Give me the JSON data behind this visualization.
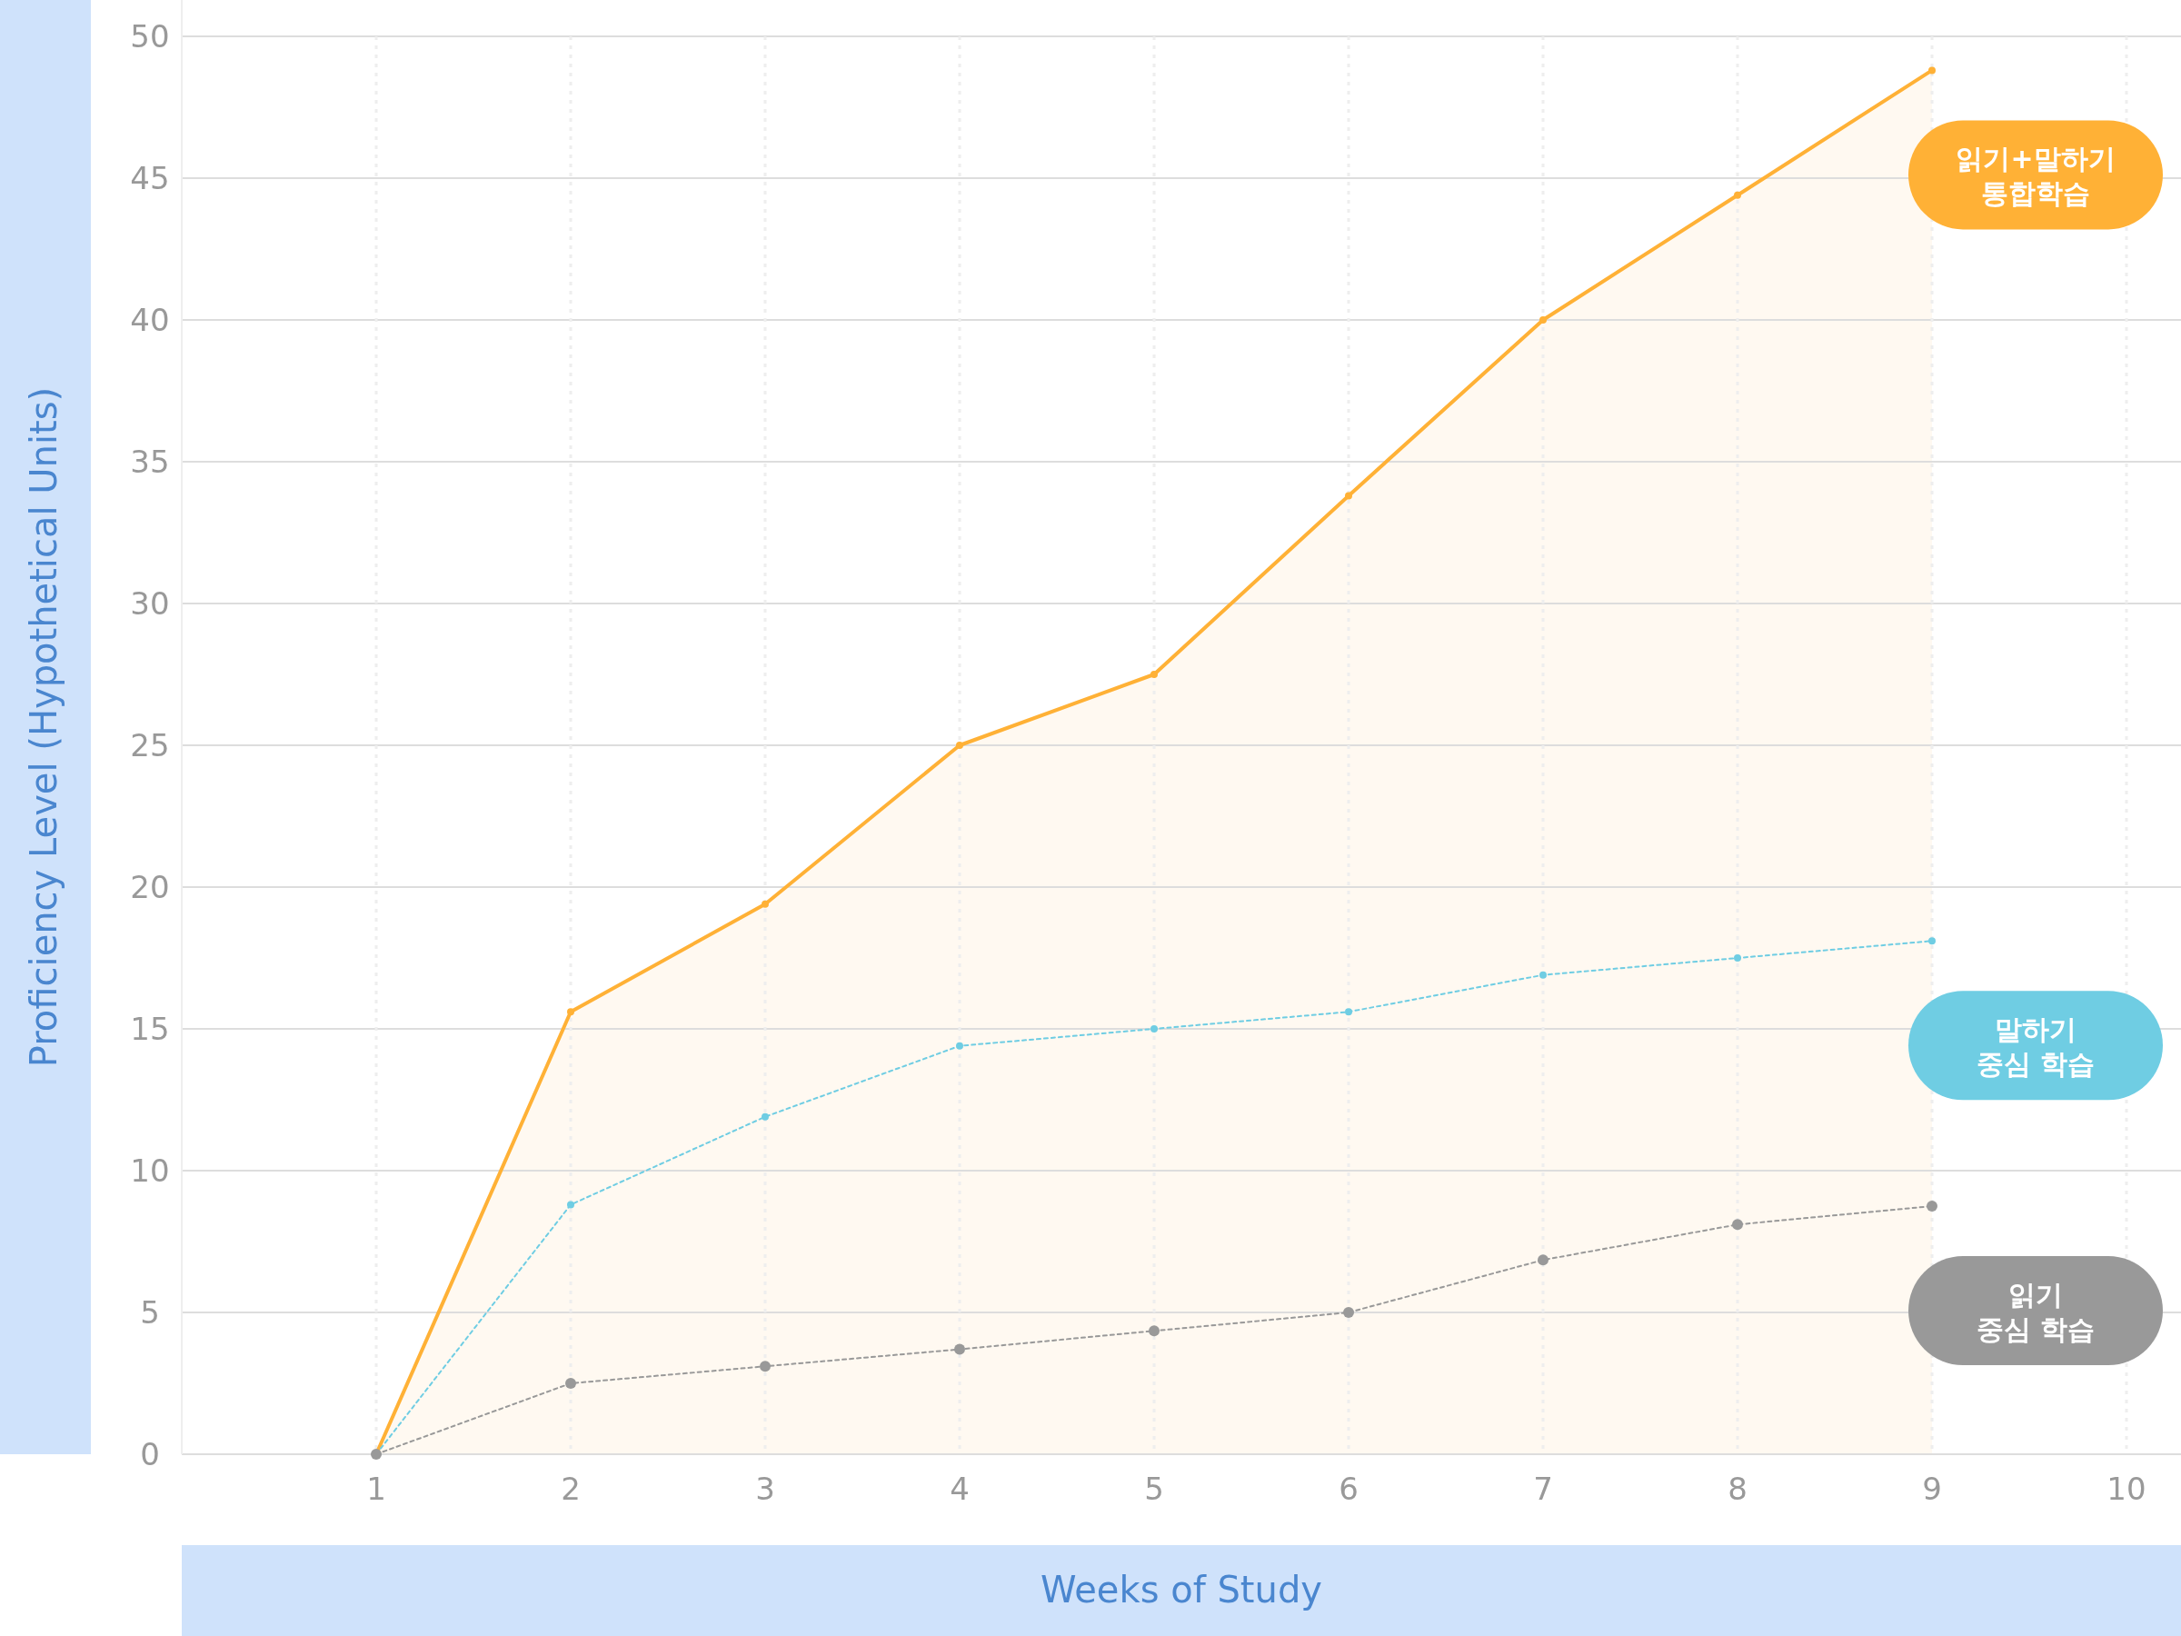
{
  "chart_data": {
    "type": "line",
    "xlabel": "Weeks of Study",
    "ylabel": "Proficiency Level (Hypothetical Units)",
    "x": [
      1,
      2,
      3,
      4,
      5,
      6,
      7,
      8,
      9
    ],
    "xlim": [
      0,
      10
    ],
    "xticks": [
      1,
      2,
      3,
      4,
      5,
      6,
      7,
      8,
      9,
      10
    ],
    "ylim": [
      0,
      50
    ],
    "yticks": [
      0,
      5,
      10,
      15,
      20,
      25,
      30,
      35,
      40,
      45,
      50
    ],
    "grid": true,
    "marker": "circle",
    "series": [
      {
        "name": "읽기+말하기\n통합학습",
        "type": "area",
        "color": "#ffb136",
        "line_style": "solid",
        "values": [
          0,
          15.6,
          19.4,
          25,
          27.5,
          33.8,
          40,
          44.4,
          48.8
        ]
      },
      {
        "name": "말하기\n중심 학습",
        "color": "#6fcde3",
        "line_style": "dotted",
        "values": [
          0,
          8.8,
          11.9,
          14.4,
          15,
          15.6,
          16.9,
          17.5,
          18.1
        ]
      },
      {
        "name": "읽기\n중심 학습",
        "color": "#999999",
        "line_style": "dotted",
        "values": [
          0,
          2.5,
          3.1,
          3.7,
          4.35,
          5,
          6.85,
          8.1,
          8.75
        ]
      }
    ]
  }
}
